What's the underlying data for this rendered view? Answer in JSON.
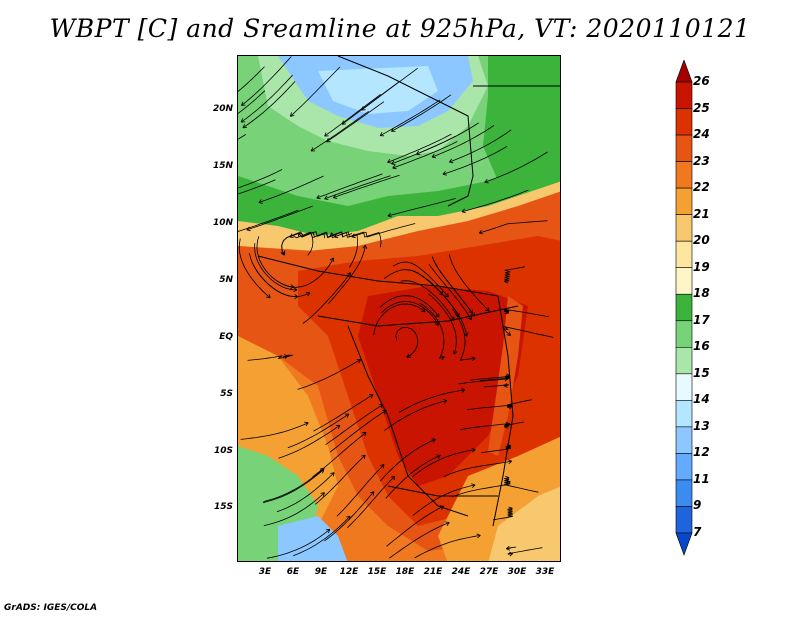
{
  "title": "WBPT [C] and Sreamline at 925hPa, VT: 2020110121",
  "footer": "GrADS: IGES/COLA",
  "lat_labels": [
    "20N",
    "15N",
    "10N",
    "5N",
    "EQ",
    "5S",
    "10S",
    "15S"
  ],
  "lon_labels": [
    "3E",
    "6E",
    "9E",
    "12E",
    "15E",
    "18E",
    "21E",
    "24E",
    "27E",
    "30E",
    "33E"
  ],
  "colorbar": {
    "labels": [
      "26",
      "25",
      "24",
      "23",
      "22",
      "21",
      "20",
      "19",
      "18",
      "17",
      "16",
      "15",
      "14",
      "13",
      "12",
      "11",
      "9",
      "7"
    ],
    "colors": [
      "#a50000",
      "#c81400",
      "#dc3200",
      "#e65514",
      "#f0781e",
      "#f5a032",
      "#f8c86e",
      "#fce6a0",
      "#fff6c8",
      "#3cb43c",
      "#78d278",
      "#aae6aa",
      "#e6faff",
      "#b4e6ff",
      "#8cc8ff",
      "#64aaff",
      "#3c8cf0",
      "#1e64dc",
      "#0a46c8"
    ]
  },
  "map": {
    "colors": {
      "deep_red": "#b41e00",
      "red": "#dc3200",
      "orange_red": "#e65514",
      "orange": "#f0781e",
      "light_orange": "#f5a032",
      "yellow": "#f8c86e",
      "pale": "#fce6a0",
      "green": "#3cb43c",
      "light_green": "#78d278",
      "pale_green": "#aae6aa",
      "pale_blue": "#b4e6ff",
      "blue": "#8cc8ff",
      "mid_blue": "#64aaff"
    }
  }
}
